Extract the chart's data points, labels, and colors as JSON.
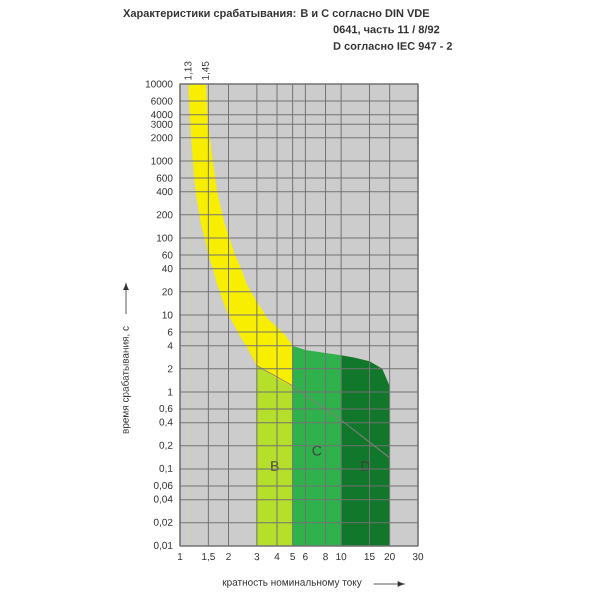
{
  "chart_data": {
    "type": "area",
    "title": "Характеристики срабатывания: B и C согласно DIN VDE",
    "subtitle": "0641, часть 11 / 8/92",
    "annotations": [
      "D согласно IEC 947 - 2",
      {
        "text": "1,13",
        "x": 1.13,
        "y": 10000
      },
      {
        "text": "1,45",
        "x": 1.45,
        "y": 10000
      }
    ],
    "xlabel": "кратность номинальному току",
    "ylabel": "время срабатывания, с",
    "log": "xy",
    "grid": true,
    "xlim": [
      1,
      30
    ],
    "ylim": [
      0.01,
      10000
    ],
    "xticks": [
      1,
      {
        "value": 1.5,
        "label": "1,5"
      },
      2,
      3,
      4,
      5,
      6,
      8,
      10,
      15,
      20,
      30
    ],
    "yticks": [
      10000,
      6000,
      4000,
      3000,
      2000,
      1000,
      600,
      400,
      200,
      100,
      60,
      40,
      20,
      10,
      6,
      4,
      2,
      1,
      {
        "value": 0.6,
        "label": "0,6"
      },
      {
        "value": 0.4,
        "label": "0,4"
      },
      {
        "value": 0.2,
        "label": "0,2"
      },
      {
        "value": 0.1,
        "label": "0,1"
      },
      {
        "value": 0.06,
        "label": "0,06"
      },
      {
        "value": 0.04,
        "label": "0,04"
      },
      {
        "value": 0.02,
        "label": "0,02"
      },
      {
        "value": 0.01,
        "label": "0,01"
      }
    ],
    "series": [
      {
        "color": "#f7ee00",
        "x": [
          1.13,
          1.45,
          1.5,
          1.6,
          1.7,
          1.9,
          2,
          2.2,
          2.4,
          2.6,
          3,
          3.5,
          4,
          4.5,
          5
        ],
        "values": [
          10000,
          10000,
          3000,
          1000,
          400,
          150,
          110,
          60,
          40,
          25,
          15,
          9,
          7,
          5.5,
          4
        ]
      },
      {
        "color": "#cccccc",
        "x": [
          1.13,
          1.16,
          1.2,
          1.25,
          1.35,
          1.45,
          1.5,
          1.6,
          1.7,
          1.9,
          2,
          2.2,
          2.4,
          2.6,
          3
        ],
        "values": [
          10000,
          3000,
          1000,
          400,
          150,
          85,
          60,
          40,
          25,
          13,
          10,
          7,
          5,
          3.8,
          2.2
        ]
      },
      {
        "name": "B",
        "color": "#b5df2a",
        "x": [
          3,
          3.5,
          4,
          4.5,
          5
        ],
        "values": [
          2.2,
          1.8,
          1.5,
          1.3,
          1.2
        ]
      },
      {
        "name": "C",
        "color": "#2fb24c",
        "x": [
          5,
          6,
          8,
          10
        ],
        "values": [
          4,
          3.5,
          3.2,
          3
        ]
      },
      {
        "name": "D",
        "color": "#11772b",
        "x": [
          10,
          12,
          15,
          18,
          20
        ],
        "values": [
          3,
          2.8,
          2.5,
          2,
          1.2
        ]
      },
      {
        "type": "line",
        "color": "#808080",
        "x": [
          3,
          5,
          10,
          20
        ],
        "values": [
          2.2,
          1.2,
          0.43,
          0.14
        ]
      }
    ]
  }
}
